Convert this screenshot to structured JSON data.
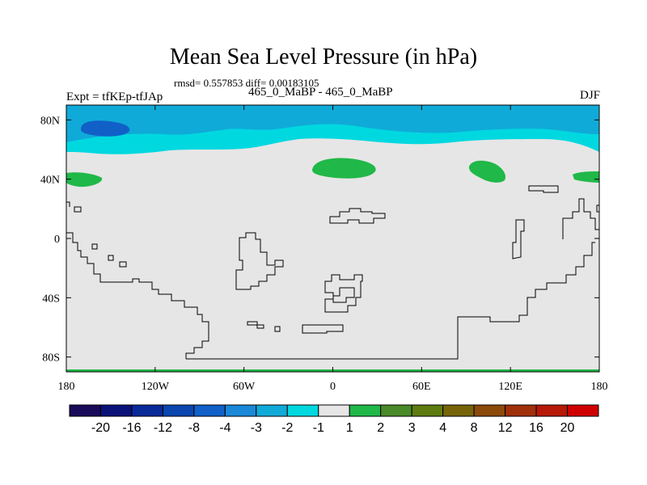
{
  "title": "Mean Sea Level Pressure (in hPa)",
  "stats": "rmsd= 0.557853 diff= 0.00183105",
  "expt_label": "Expt = tfKEp-tfJAp",
  "subtitle": "465_0_MaBP - 465_0_MaBP",
  "season": "DJF",
  "map": {
    "lat_range": [
      -90,
      90
    ],
    "lon_range": [
      -180,
      180
    ],
    "lat_ticks": [
      {
        "value": 80,
        "label": "80N"
      },
      {
        "value": 40,
        "label": "40N"
      },
      {
        "value": 0,
        "label": "0"
      },
      {
        "value": -40,
        "label": "40S"
      },
      {
        "value": -80,
        "label": "80S"
      }
    ],
    "lon_ticks": [
      {
        "value": -180,
        "label": "180"
      },
      {
        "value": -120,
        "label": "120W"
      },
      {
        "value": -60,
        "label": "60W"
      },
      {
        "value": 0,
        "label": "0"
      },
      {
        "value": 60,
        "label": "60E"
      },
      {
        "value": 120,
        "label": "120E"
      },
      {
        "value": 180,
        "label": "180"
      }
    ],
    "background_color": "#e6e6e6",
    "contour_line_color": "#000000"
  },
  "colorbar": {
    "colors": [
      "#1a0a5a",
      "#0a127a",
      "#0a2a9a",
      "#0a45b0",
      "#1060c8",
      "#1a88d8",
      "#10aad8",
      "#00d8e0",
      "#e6e6e6",
      "#20b848",
      "#4a8a28",
      "#5e7c10",
      "#786408",
      "#8c4a0a",
      "#a0300a",
      "#b81808",
      "#d00000"
    ],
    "labels": [
      "-20",
      "-16",
      "-12",
      "-8",
      "-4",
      "-3",
      "-2",
      "-1",
      "1",
      "2",
      "3",
      "4",
      "8",
      "12",
      "16",
      "20"
    ]
  }
}
